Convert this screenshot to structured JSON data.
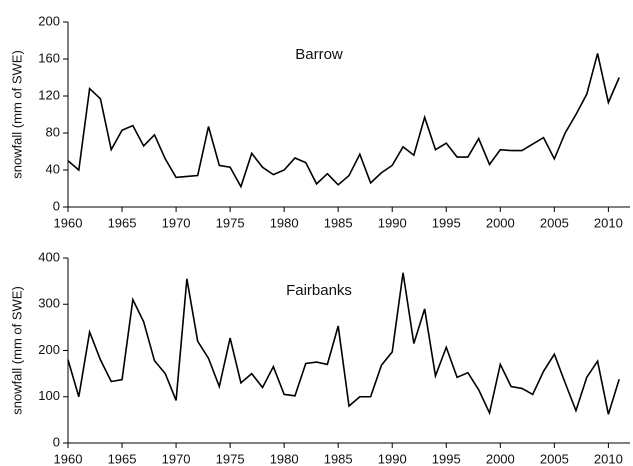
{
  "chart_data": [
    {
      "type": "line",
      "title": "Barrow",
      "ylabel": "snowfall (mm of SWE)",
      "color": "#000000",
      "x": [
        1960,
        1961,
        1962,
        1963,
        1964,
        1965,
        1966,
        1967,
        1968,
        1969,
        1970,
        1971,
        1972,
        1973,
        1974,
        1975,
        1976,
        1977,
        1978,
        1979,
        1980,
        1981,
        1982,
        1983,
        1984,
        1985,
        1986,
        1987,
        1988,
        1989,
        1990,
        1991,
        1992,
        1993,
        1994,
        1995,
        1996,
        1997,
        1998,
        1999,
        2000,
        2001,
        2002,
        2003,
        2004,
        2005,
        2006,
        2007,
        2008,
        2009,
        2010,
        2011
      ],
      "values": [
        50,
        40,
        128,
        117,
        62,
        83,
        88,
        66,
        78,
        52,
        32,
        33,
        34,
        87,
        45,
        43,
        22,
        58,
        43,
        35,
        40,
        53,
        48,
        25,
        36,
        24,
        34,
        57,
        26,
        37,
        45,
        65,
        56,
        97,
        62,
        69,
        54,
        54,
        74,
        46,
        62,
        61,
        61,
        68,
        75,
        52,
        80,
        100,
        122,
        166,
        113,
        140
      ],
      "xlim": [
        1960,
        2012
      ],
      "xticks": [
        1960,
        1965,
        1970,
        1975,
        1980,
        1985,
        1990,
        1995,
        2000,
        2005,
        2010
      ],
      "ylim": [
        0,
        200
      ],
      "yticks": [
        0,
        40,
        80,
        120,
        160,
        200
      ]
    },
    {
      "type": "line",
      "title": "Fairbanks",
      "ylabel": "snowfall (mm of SWE)",
      "color": "#000000",
      "x": [
        1960,
        1961,
        1962,
        1963,
        1964,
        1965,
        1966,
        1967,
        1968,
        1969,
        1970,
        1971,
        1972,
        1973,
        1974,
        1975,
        1976,
        1977,
        1978,
        1979,
        1980,
        1981,
        1982,
        1983,
        1984,
        1985,
        1986,
        1987,
        1988,
        1989,
        1990,
        1991,
        1992,
        1993,
        1994,
        1995,
        1996,
        1997,
        1998,
        1999,
        2000,
        2001,
        2002,
        2003,
        2004,
        2005,
        2006,
        2007,
        2008,
        2009,
        2010,
        2011
      ],
      "values": [
        180,
        100,
        240,
        180,
        133,
        137,
        310,
        262,
        178,
        150,
        92,
        355,
        220,
        183,
        122,
        227,
        130,
        150,
        120,
        165,
        105,
        102,
        172,
        175,
        170,
        253,
        80,
        100,
        100,
        168,
        197,
        368,
        215,
        290,
        145,
        207,
        142,
        152,
        115,
        65,
        170,
        122,
        118,
        105,
        155,
        192,
        130,
        70,
        142,
        177,
        62,
        138
      ],
      "xlim": [
        1960,
        2012
      ],
      "xticks": [
        1960,
        1965,
        1970,
        1975,
        1980,
        1985,
        1990,
        1995,
        2000,
        2005,
        2010
      ],
      "ylim": [
        0,
        400
      ],
      "yticks": [
        0,
        100,
        200,
        300,
        400
      ]
    }
  ]
}
